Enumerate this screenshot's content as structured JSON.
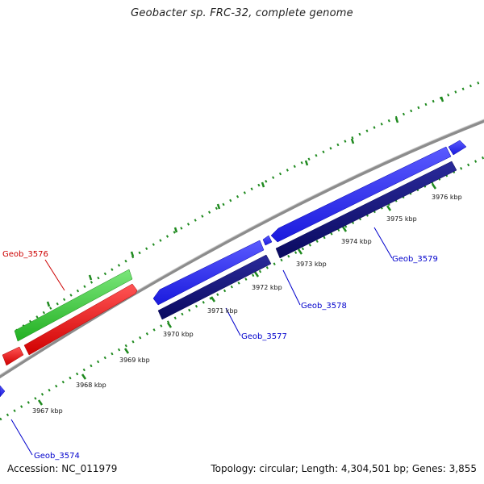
{
  "title": "Geobacter sp. FRC-32, complete genome",
  "footer": {
    "accession": "Accession: NC_011979",
    "stats": "Topology: circular; Length: 4,304,501 bp; Genes: 3,855"
  },
  "colors": {
    "backbone": "#8c8c8c",
    "ticks": "#1f8a1f",
    "red_label": "#cc0000",
    "blue_label": "#0000cc",
    "forward_gene": "#2a2aee",
    "reverse_gene": "#10107a",
    "rna_gene": "#33cc33",
    "red_gene": "#ee1111"
  },
  "kbp_labels": [
    "3967 kbp",
    "3968 kbp",
    "3969 kbp",
    "3970 kbp",
    "3971 kbp",
    "3972 kbp",
    "3973 kbp",
    "3974 kbp",
    "3975 kbp",
    "3976 kbp"
  ],
  "gene_labels": {
    "geob_3574": "Geob_3574",
    "geob_3576": "Geob_3576",
    "geob_3577": "Geob_3577",
    "geob_3578": "Geob_3578",
    "geob_3579": "Geob_3579"
  }
}
